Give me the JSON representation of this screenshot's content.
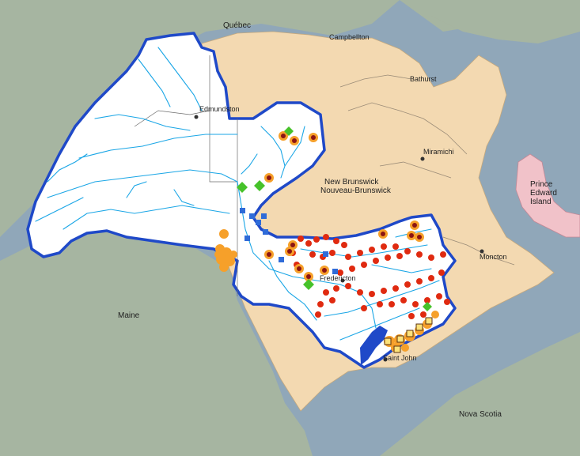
{
  "labels": {
    "quebec": "Québec",
    "campbellton": "Campbellton",
    "edmundston": "Edmundston",
    "bathurst": "Bathurst",
    "miramichi": "Miramichi",
    "nb_en": "New Brunswick",
    "nb_fr": "Nouveau-Brunswick",
    "pei_1": "Prince",
    "pei_2": "Edward",
    "pei_3": "Island",
    "moncton": "Moncton",
    "maine": "Maine",
    "fredericton": "Fredericton",
    "saint_john": "Saint John",
    "nova_scotia": "Nova Scotia"
  },
  "colors": {
    "water": "#90a7b9",
    "land_other": "#a6b5a1",
    "new_brunswick": "#f3d9b1",
    "basin_fill": "#ffffff",
    "basin_outline": "#1f49c8",
    "rivers": "#1aa6e6",
    "pei": "#f1c2c9",
    "point_red": "#e02a10",
    "point_orange": "#f6a02a",
    "square_blue": "#2f6bd8",
    "diamond_green": "#46c22a"
  }
}
